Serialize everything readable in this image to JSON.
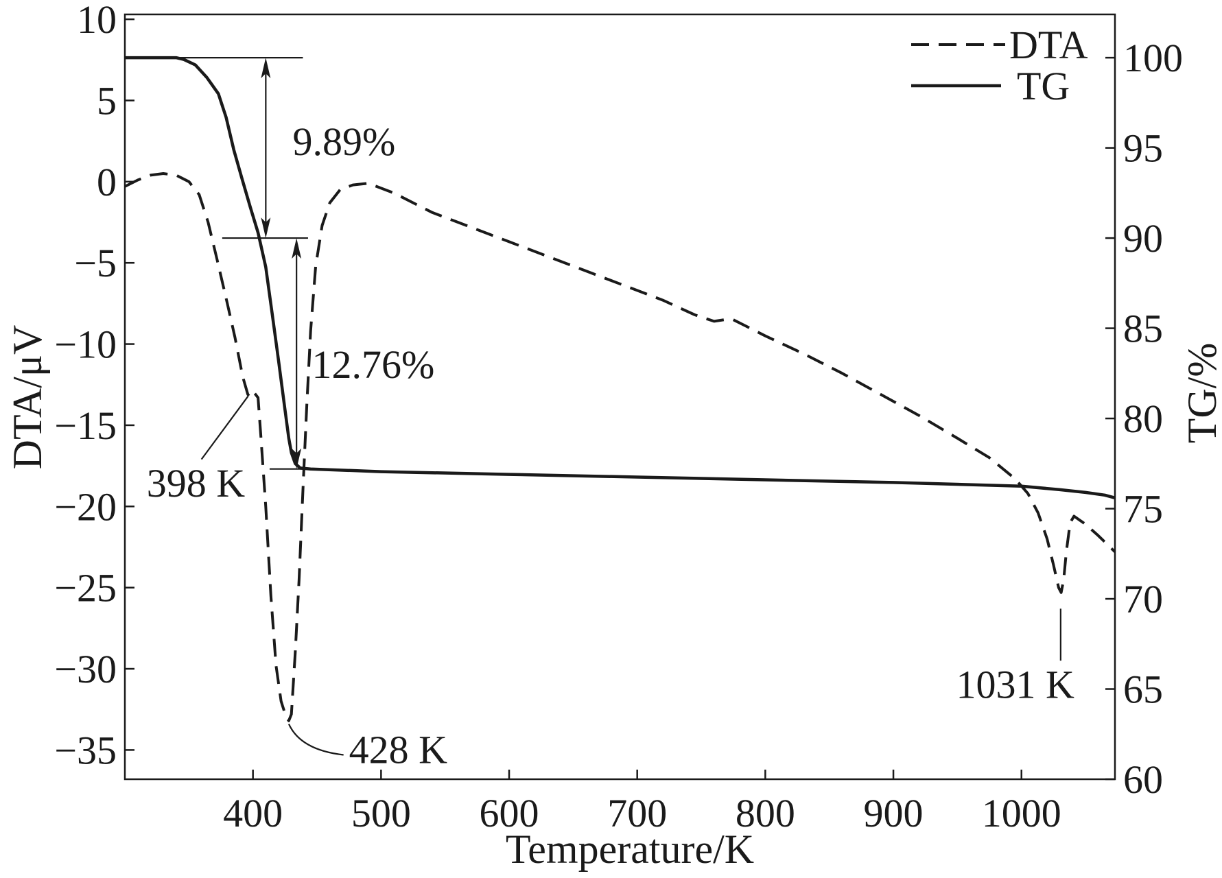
{
  "chart_data": {
    "type": "line",
    "xlabel": "Temperature/K",
    "ylabel": "DTA/μV",
    "y2label": "TG/%",
    "xlim": [
      300,
      1073
    ],
    "ylim": [
      -36.8,
      10.3
    ],
    "y2lim": [
      60,
      102.4
    ],
    "grid": false,
    "xtick_labels": [
      "400",
      "500",
      "600",
      "700",
      "800",
      "900",
      "1000"
    ],
    "ytick_labels": [
      "10",
      "5",
      "0",
      "−5",
      "−10",
      "−15",
      "−20",
      "−25",
      "−30",
      "−35"
    ],
    "y2tick_labels": [
      "100",
      "95",
      "90",
      "85",
      "80",
      "75",
      "70",
      "65",
      "60"
    ],
    "legend": {
      "position": "top-right"
    },
    "colors": {
      "lines": "#1a1a1a",
      "background": "#ffffff"
    },
    "series": [
      {
        "name": "DTA",
        "axis": "left",
        "style": "dashed",
        "x": [
          300,
          310,
          320,
          330,
          340,
          350,
          358,
          365,
          372,
          380,
          386,
          392,
          396,
          398,
          401,
          404,
          406,
          410,
          414,
          418,
          422,
          426,
          428,
          430,
          433,
          436,
          439,
          442,
          445,
          449,
          454,
          460,
          468,
          478,
          490,
          510,
          540,
          570,
          600,
          630,
          660,
          690,
          720,
          745,
          760,
          768,
          775,
          785,
          800,
          830,
          860,
          890,
          920,
          950,
          975,
          995,
          1005,
          1013,
          1020,
          1025,
          1029,
          1031,
          1033,
          1035,
          1038,
          1041,
          1050,
          1060,
          1073
        ],
        "y": [
          -0.3,
          0.1,
          0.4,
          0.5,
          0.4,
          0.0,
          -0.8,
          -2.5,
          -4.8,
          -7.5,
          -9.6,
          -12.0,
          -13.1,
          -13.3,
          -13.0,
          -13.3,
          -15.5,
          -20.0,
          -25.5,
          -29.8,
          -32.0,
          -33.0,
          -33.2,
          -32.8,
          -29.0,
          -24.5,
          -19.0,
          -13.8,
          -9.2,
          -5.2,
          -2.7,
          -1.3,
          -0.5,
          -0.2,
          -0.1,
          -0.7,
          -1.9,
          -2.8,
          -3.7,
          -4.6,
          -5.5,
          -6.4,
          -7.3,
          -8.2,
          -8.6,
          -8.5,
          -8.5,
          -8.9,
          -9.5,
          -10.6,
          -11.8,
          -13.1,
          -14.4,
          -15.8,
          -17.0,
          -18.3,
          -19.2,
          -20.4,
          -22.0,
          -23.6,
          -25.0,
          -25.3,
          -24.5,
          -22.8,
          -21.0,
          -20.6,
          -21.1,
          -21.8,
          -22.8
        ]
      },
      {
        "name": "TG",
        "axis": "right",
        "style": "solid",
        "x": [
          300,
          340,
          346,
          355,
          364,
          373,
          379,
          385,
          391,
          398,
          404,
          410,
          415,
          420,
          425,
          428,
          430,
          433,
          437,
          445,
          500,
          600,
          700,
          800,
          900,
          1000,
          1030,
          1050,
          1065,
          1073
        ],
        "y": [
          100,
          100,
          99.9,
          99.6,
          98.9,
          98.0,
          96.7,
          94.9,
          93.4,
          91.7,
          90.3,
          88.4,
          85.8,
          83.2,
          80.5,
          78.9,
          78.1,
          77.5,
          77.25,
          77.2,
          77.05,
          76.9,
          76.75,
          76.6,
          76.45,
          76.25,
          76.05,
          75.9,
          75.75,
          75.6
        ]
      }
    ],
    "annotations": {
      "mass_loss_1": "9.89%",
      "mass_loss_2": "12.76%",
      "peak_1": "398 K",
      "peak_2": "428 K",
      "peak_3": "1031 K"
    }
  }
}
